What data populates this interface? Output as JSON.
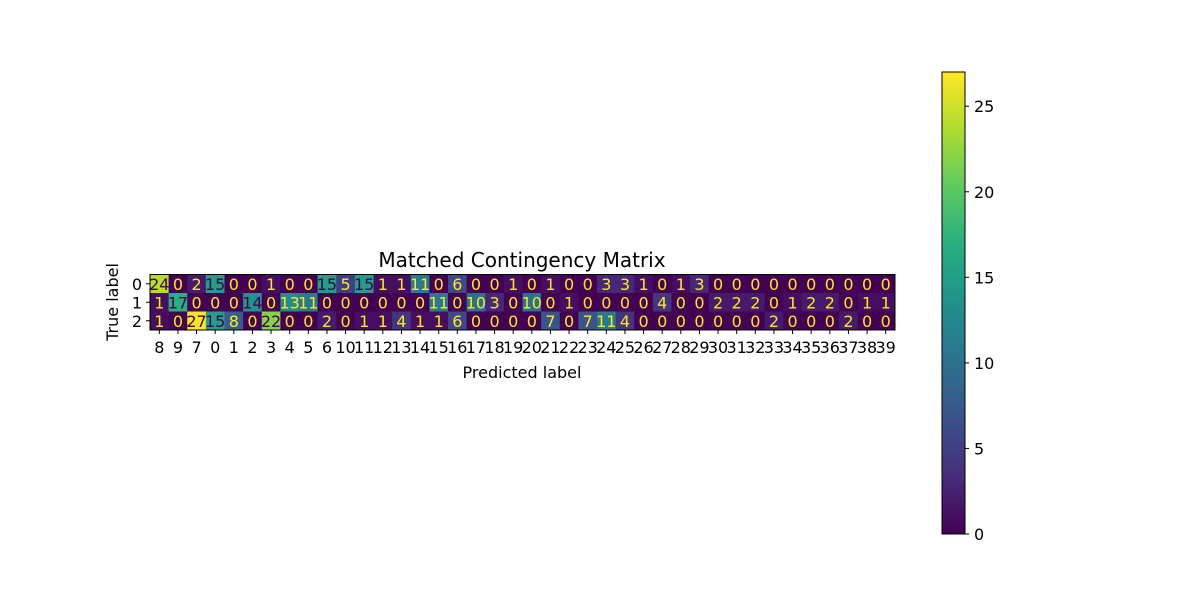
{
  "chart_data": {
    "type": "heatmap",
    "title": "Matched Contingency Matrix",
    "xlabel": "Predicted label",
    "ylabel": "True label",
    "x_categories": [
      "8",
      "9",
      "7",
      "0",
      "1",
      "2",
      "3",
      "4",
      "5",
      "6",
      "10",
      "11",
      "12",
      "13",
      "14",
      "15",
      "16",
      "17",
      "18",
      "19",
      "20",
      "21",
      "22",
      "23",
      "24",
      "25",
      "26",
      "27",
      "28",
      "29",
      "30",
      "31",
      "32",
      "33",
      "34",
      "35",
      "36",
      "37",
      "38",
      "39"
    ],
    "y_categories": [
      "0",
      "1",
      "2"
    ],
    "values": [
      [
        24,
        0,
        2,
        15,
        0,
        0,
        1,
        0,
        0,
        15,
        5,
        15,
        1,
        1,
        11,
        0,
        6,
        0,
        0,
        1,
        0,
        1,
        0,
        0,
        3,
        3,
        1,
        0,
        1,
        3,
        0,
        0,
        0,
        0,
        0,
        0,
        0,
        0,
        0,
        0
      ],
      [
        1,
        17,
        0,
        0,
        0,
        14,
        0,
        13,
        11,
        0,
        0,
        0,
        0,
        0,
        0,
        11,
        0,
        10,
        3,
        0,
        10,
        0,
        1,
        0,
        0,
        0,
        0,
        4,
        0,
        0,
        2,
        2,
        2,
        0,
        1,
        2,
        2,
        0,
        1,
        1
      ],
      [
        1,
        0,
        27,
        15,
        8,
        0,
        22,
        0,
        0,
        2,
        0,
        1,
        1,
        4,
        1,
        1,
        6,
        0,
        0,
        0,
        0,
        7,
        0,
        7,
        11,
        4,
        0,
        0,
        0,
        0,
        0,
        0,
        0,
        2,
        0,
        0,
        0,
        2,
        0,
        0
      ]
    ],
    "colormap": "viridis",
    "vmin": 0,
    "vmax": 27,
    "colorbar_ticks": [
      0,
      5,
      10,
      15,
      20,
      25
    ],
    "text_color_light": "#fde725",
    "text_color_dark": "#440154"
  }
}
